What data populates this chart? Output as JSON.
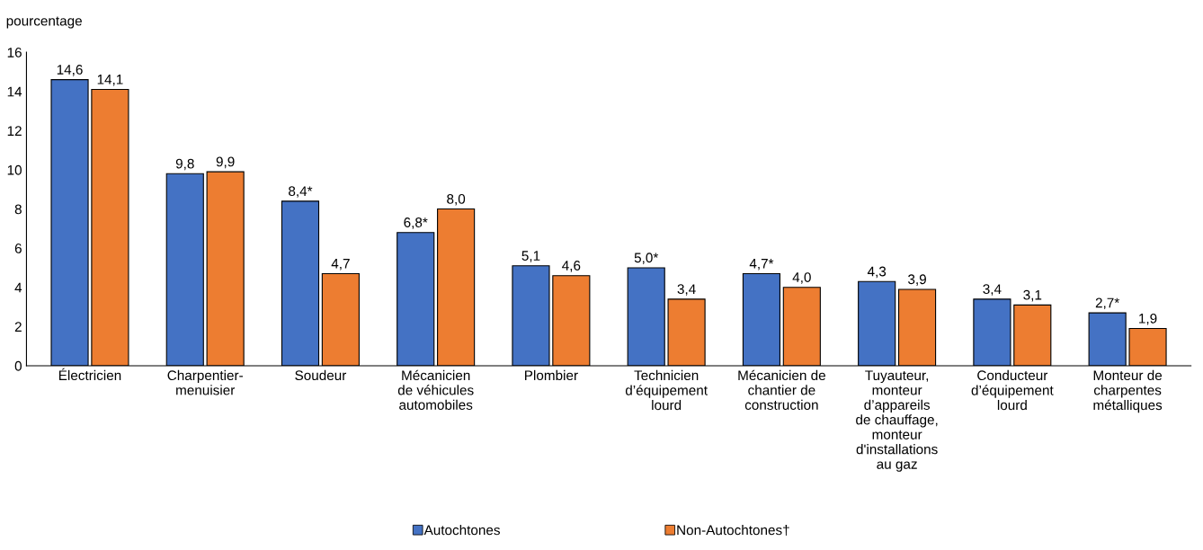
{
  "chart_data": {
    "type": "bar",
    "ylabel": "pourcentage",
    "categories": [
      "Électricien",
      "Charpentier-\nmenuisier",
      "Soudeur",
      "Mécanicien\nde véhicules\nautomobiles",
      "Plombier",
      "Technicien\nd’équipement\nlourd",
      "Mécanicien de\nchantier de\nconstruction",
      "Tuyauteur,\nmonteur\nd’appareils\nde chauffage,\nmonteur\nd'installations\nau gaz",
      "Conducteur\nd’équipement\nlourd",
      "Monteur de\ncharpentes\nmétalliques"
    ],
    "series": [
      {
        "name": "Autochtones",
        "color": "#4472c4",
        "values": [
          14.6,
          9.8,
          8.4,
          6.8,
          5.1,
          5.0,
          4.7,
          4.3,
          3.4,
          2.7
        ],
        "value_labels": [
          "14,6",
          "9,8",
          "8,4*",
          "6,8*",
          "5,1",
          "5,0*",
          "4,7*",
          "4,3",
          "3,4",
          "2,7*"
        ]
      },
      {
        "name": "Non-Autochtones†",
        "color": "#ed7d31",
        "values": [
          14.1,
          9.9,
          4.7,
          8.0,
          4.6,
          3.4,
          4.0,
          3.9,
          3.1,
          1.9
        ],
        "value_labels": [
          "14,1",
          "9,9",
          "4,7",
          "8,0",
          "4,6",
          "3,4",
          "4,0",
          "3,9",
          "3,1",
          "1,9"
        ]
      }
    ],
    "ylim": [
      0,
      16
    ],
    "yticks": [
      0,
      2,
      4,
      6,
      8,
      10,
      12,
      14,
      16
    ],
    "grid": false,
    "legend": "bottom"
  }
}
